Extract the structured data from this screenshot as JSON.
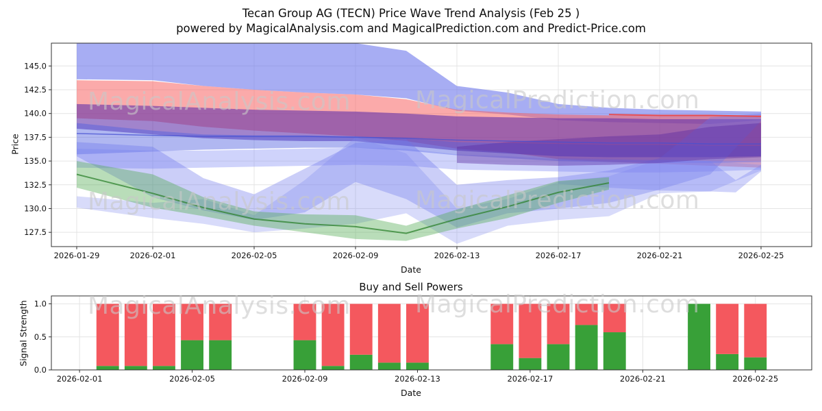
{
  "title": {
    "line1": "Tecan Group AG (TECN) Price Wave Trend Analysis (Feb 25 )",
    "line2": "powered by MagicalAnalysis.com and MagicalPrediction.com and Predict-Price.com"
  },
  "watermarks": {
    "left": "MagicalAnalysis.com",
    "right": "MagicalPrediction.com"
  },
  "chart_data": [
    {
      "type": "area",
      "title": "",
      "xlabel": "Date",
      "ylabel": "Price",
      "ylim": [
        126.0,
        147.4
      ],
      "yticks": [
        127.5,
        130.0,
        132.5,
        135.0,
        137.5,
        140.0,
        142.5,
        145.0
      ],
      "xlim": [
        "2026-01-28",
        "2026-02-27"
      ],
      "xticks": [
        "2026-01-29",
        "2026-02-01",
        "2026-02-05",
        "2026-02-09",
        "2026-02-13",
        "2026-02-17",
        "2026-02-21",
        "2026-02-25"
      ],
      "grid": true,
      "legend": false,
      "bands": [
        {
          "name": "forecast-band-high-blue",
          "color": "rgba(108,118,235,0.60)",
          "dates": [
            "2026-01-29",
            "2026-02-01",
            "2026-02-03",
            "2026-02-05",
            "2026-02-07",
            "2026-02-09",
            "2026-02-11",
            "2026-02-13",
            "2026-02-15",
            "2026-02-17",
            "2026-02-19",
            "2026-02-21",
            "2026-02-23",
            "2026-02-25"
          ],
          "upper": [
            147.6,
            147.6,
            147.6,
            147.7,
            147.7,
            147.7,
            146.6,
            142.9,
            142.2,
            141.0,
            140.6,
            140.4,
            140.3,
            140.2
          ],
          "lower": [
            143.6,
            143.5,
            142.9,
            142.5,
            142.2,
            142.0,
            141.6,
            140.3,
            139.9,
            139.3,
            139.1,
            139.0,
            138.9,
            139.3
          ]
        },
        {
          "name": "forecast-band-red",
          "color": "rgba(248,100,100,0.55)",
          "dates": [
            "2026-01-29",
            "2026-02-01",
            "2026-02-03",
            "2026-02-05",
            "2026-02-07",
            "2026-02-09",
            "2026-02-11",
            "2026-02-13",
            "2026-02-15",
            "2026-02-17",
            "2026-02-19",
            "2026-02-21",
            "2026-02-23",
            "2026-02-25"
          ],
          "upper": [
            143.5,
            143.4,
            142.9,
            142.5,
            142.2,
            142.0,
            141.5,
            140.4,
            140.1,
            139.9,
            139.8,
            139.8,
            139.8,
            139.8
          ],
          "lower": [
            139.5,
            139.2,
            138.6,
            138.2,
            137.9,
            137.6,
            137.1,
            136.3,
            135.9,
            135.2,
            134.9,
            134.7,
            134.5,
            134.3
          ]
        },
        {
          "name": "forecast-band-purple-core",
          "color": "rgba(98,50,170,0.60)",
          "dates": [
            "2026-01-29",
            "2026-02-01",
            "2026-02-03",
            "2026-02-05",
            "2026-02-07",
            "2026-02-09",
            "2026-02-11",
            "2026-02-13",
            "2026-02-15",
            "2026-02-17",
            "2026-02-19",
            "2026-02-21",
            "2026-02-23",
            "2026-02-25"
          ],
          "upper": [
            141.0,
            140.8,
            140.6,
            140.4,
            140.3,
            140.2,
            140.0,
            139.7,
            139.6,
            139.5,
            139.5,
            139.4,
            139.4,
            139.4
          ],
          "lower": [
            138.4,
            137.8,
            137.4,
            137.2,
            137.1,
            137.1,
            136.6,
            136.1,
            135.8,
            135.5,
            135.4,
            135.4,
            135.4,
            135.5
          ]
        },
        {
          "name": "forecast-band-mid-blue",
          "color": "rgba(80,95,225,0.45)",
          "dates": [
            "2026-01-29",
            "2026-02-01",
            "2026-02-03",
            "2026-02-05",
            "2026-02-07",
            "2026-02-09",
            "2026-02-11",
            "2026-02-13",
            "2026-02-15",
            "2026-02-17",
            "2026-02-19",
            "2026-02-21",
            "2026-02-23",
            "2026-02-25"
          ],
          "upper": [
            139.0,
            138.2,
            137.8,
            137.7,
            137.7,
            137.6,
            137.4,
            137.0,
            136.9,
            136.8,
            136.7,
            136.7,
            136.6,
            136.6
          ],
          "lower": [
            135.7,
            136.0,
            136.2,
            136.3,
            136.4,
            136.4,
            136.1,
            135.6,
            135.3,
            135.0,
            134.9,
            134.8,
            134.8,
            134.9
          ]
        },
        {
          "name": "forecast-band-periwinkle",
          "color": "rgba(135,145,245,0.40)",
          "dates": [
            "2026-01-29",
            "2026-02-01",
            "2026-02-03",
            "2026-02-05",
            "2026-02-07",
            "2026-02-09",
            "2026-02-11",
            "2026-02-13",
            "2026-02-15",
            "2026-02-17",
            "2026-02-19",
            "2026-02-21",
            "2026-02-23",
            "2026-02-25"
          ],
          "upper": [
            136.3,
            136.1,
            136.1,
            136.2,
            136.3,
            136.4,
            136.3,
            135.7,
            135.5,
            135.2,
            135.1,
            135.1,
            135.0,
            135.0
          ],
          "lower": [
            134.3,
            134.2,
            134.3,
            134.4,
            134.5,
            134.6,
            134.5,
            134.1,
            134.0,
            133.9,
            133.8,
            133.8,
            133.9,
            134.1
          ]
        },
        {
          "name": "wave-band-blue-a",
          "color": "rgba(105,115,235,0.35)",
          "dates": [
            "2026-01-29",
            "2026-02-01",
            "2026-02-03",
            "2026-02-05",
            "2026-02-07",
            "2026-02-09",
            "2026-02-11",
            "2026-02-13",
            "2026-02-15",
            "2026-02-17",
            "2026-02-19",
            "2026-02-21",
            "2026-02-23",
            "2026-02-25"
          ],
          "upper": [
            137.0,
            136.5,
            133.2,
            131.5,
            134.2,
            136.9,
            137.3,
            132.5,
            133.0,
            133.3,
            134.0,
            135.3,
            139.6,
            140.0
          ],
          "lower": [
            135.5,
            131.2,
            129.8,
            128.8,
            129.6,
            132.8,
            131.0,
            128.0,
            129.5,
            130.0,
            130.6,
            132.0,
            133.6,
            139.2
          ]
        },
        {
          "name": "wave-band-blue-b",
          "color": "rgba(125,135,240,0.30)",
          "dates": [
            "2026-01-29",
            "2026-02-01",
            "2026-02-03",
            "2026-02-05",
            "2026-02-07",
            "2026-02-09",
            "2026-02-11",
            "2026-02-13",
            "2026-02-15",
            "2026-02-17",
            "2026-02-19",
            "2026-02-21",
            "2026-02-23",
            "2026-02-25"
          ],
          "upper": [
            131.3,
            130.6,
            131.0,
            129.3,
            133.0,
            137.5,
            135.8,
            130.0,
            131.0,
            132.8,
            133.4,
            135.2,
            135.0,
            134.6
          ],
          "lower": [
            130.1,
            129.0,
            128.4,
            127.5,
            127.9,
            128.4,
            129.5,
            126.3,
            128.2,
            128.8,
            129.2,
            131.6,
            131.8,
            134.0
          ]
        },
        {
          "name": "wave-band-blue-right",
          "color": "rgba(120,130,240,0.35)",
          "dates": [
            "2026-02-17",
            "2026-02-19",
            "2026-02-21",
            "2026-02-23",
            "2026-02-24",
            "2026-02-25"
          ],
          "upper": [
            135.3,
            135.2,
            135.1,
            135.0,
            133.0,
            134.6
          ],
          "lower": [
            132.6,
            132.2,
            131.9,
            131.8,
            131.7,
            133.9
          ]
        },
        {
          "name": "forecast-band-purple-right",
          "color": "rgba(88,40,160,0.40)",
          "dates": [
            "2026-02-13",
            "2026-02-15",
            "2026-02-17",
            "2026-02-19",
            "2026-02-21",
            "2026-02-23",
            "2026-02-25"
          ],
          "upper": [
            136.5,
            137.0,
            137.3,
            137.6,
            137.8,
            138.6,
            139.0
          ],
          "lower": [
            134.8,
            134.6,
            134.5,
            134.6,
            134.8,
            135.2,
            135.4
          ]
        },
        {
          "name": "trend-band-green",
          "color": "rgba(80,170,80,0.40)",
          "dates": [
            "2026-01-29",
            "2026-02-01",
            "2026-02-03",
            "2026-02-05",
            "2026-02-07",
            "2026-02-09",
            "2026-02-11",
            "2026-02-13",
            "2026-02-15",
            "2026-02-17",
            "2026-02-19"
          ],
          "upper": [
            135.0,
            133.6,
            131.2,
            129.7,
            129.4,
            129.3,
            128.2,
            129.9,
            131.4,
            132.9,
            133.3
          ],
          "lower": [
            132.2,
            130.1,
            129.2,
            128.2,
            127.5,
            126.8,
            126.6,
            127.9,
            129.0,
            130.6,
            132.0
          ]
        }
      ],
      "lines": [
        {
          "name": "trend-line-green",
          "color": "rgba(45,130,45,0.75)",
          "width": 2,
          "dates": [
            "2026-01-29",
            "2026-02-01",
            "2026-02-03",
            "2026-02-05",
            "2026-02-07",
            "2026-02-09",
            "2026-02-11",
            "2026-02-13",
            "2026-02-15",
            "2026-02-17",
            "2026-02-19"
          ],
          "values": [
            133.6,
            131.6,
            130.1,
            128.9,
            128.4,
            128.1,
            127.4,
            128.9,
            130.2,
            131.7,
            132.7
          ]
        },
        {
          "name": "trend-line-blue",
          "color": "rgba(70,80,210,0.75)",
          "width": 1.5,
          "dates": [
            "2026-01-29",
            "2026-02-01",
            "2026-02-03",
            "2026-02-05",
            "2026-02-07",
            "2026-02-09",
            "2026-02-11",
            "2026-02-13",
            "2026-02-15",
            "2026-02-17",
            "2026-02-19",
            "2026-02-21",
            "2026-02-23",
            "2026-02-25"
          ],
          "values": [
            137.9,
            137.7,
            137.6,
            137.6,
            137.6,
            137.5,
            137.4,
            137.2,
            137.1,
            137.0,
            136.9,
            136.9,
            136.8,
            136.8
          ]
        },
        {
          "name": "trend-line-red",
          "color": "rgba(235,70,70,0.9)",
          "width": 2,
          "dates": [
            "2026-02-19",
            "2026-02-21",
            "2026-02-23",
            "2026-02-25"
          ],
          "values": [
            139.9,
            139.8,
            139.8,
            139.7
          ]
        }
      ]
    },
    {
      "type": "bar",
      "title": "Buy and Sell Powers",
      "xlabel": "Date",
      "ylabel": "Signal Strength",
      "ylim": [
        0,
        1.12
      ],
      "yticks": [
        0.0,
        0.5,
        1.0
      ],
      "xlim": [
        "2026-01-31",
        "2026-02-27"
      ],
      "xticks": [
        "2026-02-01",
        "2026-02-05",
        "2026-02-09",
        "2026-02-13",
        "2026-02-17",
        "2026-02-21",
        "2026-02-25"
      ],
      "grid": true,
      "stacked": true,
      "buy_color": "#38a038",
      "sell_color": "#f4585e",
      "dates": [
        "2026-02-02",
        "2026-02-03",
        "2026-02-04",
        "2026-02-05",
        "2026-02-06",
        "2026-02-09",
        "2026-02-10",
        "2026-02-11",
        "2026-02-12",
        "2026-02-13",
        "2026-02-16",
        "2026-02-17",
        "2026-02-18",
        "2026-02-19",
        "2026-02-20",
        "2026-02-23",
        "2026-02-24",
        "2026-02-25"
      ],
      "buy": [
        0.06,
        0.06,
        0.06,
        0.45,
        0.45,
        0.45,
        0.06,
        0.23,
        0.11,
        0.11,
        0.39,
        0.18,
        0.39,
        0.68,
        0.57,
        1.0,
        0.24,
        0.19
      ],
      "sell": [
        0.94,
        0.94,
        0.94,
        0.55,
        0.55,
        0.55,
        0.94,
        0.77,
        0.89,
        0.89,
        0.61,
        0.82,
        0.61,
        0.32,
        0.43,
        0.0,
        0.76,
        0.81
      ]
    }
  ]
}
